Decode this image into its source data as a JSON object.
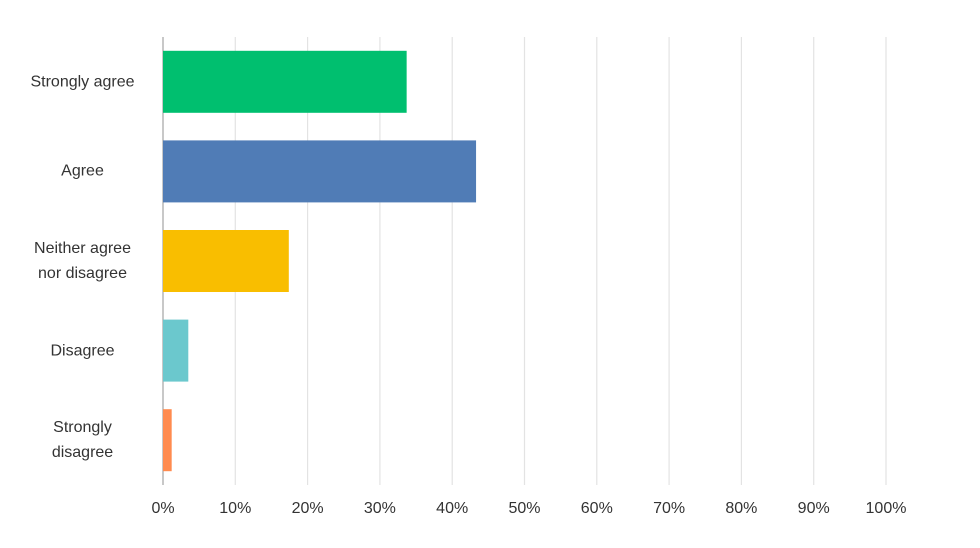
{
  "chart_data": {
    "type": "hbar",
    "categories": [
      "Strongly agree",
      "Agree",
      "Neither agree\nnor disagree",
      "Disagree",
      "Strongly\ndisagree"
    ],
    "values": [
      33.7,
      43.3,
      17.4,
      3.5,
      1.2
    ],
    "colors": [
      "#00bf6f",
      "#507cb6",
      "#f9be00",
      "#6bc8cd",
      "#ff8b4f"
    ],
    "xlim": [
      0,
      100
    ],
    "xticks": [
      {
        "value": 0,
        "label": "0%"
      },
      {
        "value": 10,
        "label": "10%"
      },
      {
        "value": 20,
        "label": "20%"
      },
      {
        "value": 30,
        "label": "30%"
      },
      {
        "value": 40,
        "label": "40%"
      },
      {
        "value": 50,
        "label": "50%"
      },
      {
        "value": 60,
        "label": "60%"
      },
      {
        "value": 70,
        "label": "70%"
      },
      {
        "value": 80,
        "label": "80%"
      },
      {
        "value": 90,
        "label": "90%"
      },
      {
        "value": 100,
        "label": "100%"
      }
    ],
    "grid": true
  }
}
